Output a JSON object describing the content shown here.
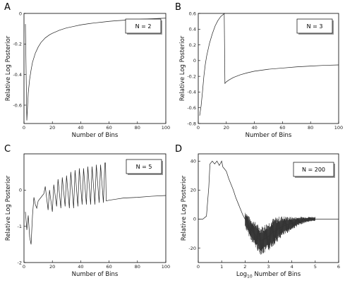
{
  "chart_data": [
    {
      "type": "line",
      "panel": "A",
      "legend": "N = 2",
      "xlabel": "Number of Bins",
      "ylabel": "Relative Log Posterior",
      "xlim": [
        0,
        100
      ],
      "ylim": [
        -0.72,
        0
      ],
      "xticks": [
        "0",
        "20",
        "40",
        "60",
        "80",
        "100"
      ],
      "yticks": [
        "0",
        "-0.2",
        "-0.4",
        "-0.6"
      ],
      "x": [
        1,
        2,
        3,
        4,
        5,
        6,
        8,
        10,
        12,
        15,
        18,
        20,
        25,
        30,
        35,
        40,
        45,
        50,
        55,
        60,
        65,
        70,
        75,
        80,
        85,
        90,
        95,
        100
      ],
      "y": [
        -0.07,
        -0.7,
        -0.52,
        -0.43,
        -0.37,
        -0.32,
        -0.26,
        -0.22,
        -0.19,
        -0.16,
        -0.14,
        -0.13,
        -0.11,
        -0.095,
        -0.085,
        -0.075,
        -0.068,
        -0.062,
        -0.057,
        -0.052,
        -0.048,
        -0.045,
        -0.042,
        -0.039,
        -0.037,
        -0.035,
        -0.033,
        -0.031
      ]
    },
    {
      "type": "line",
      "panel": "B",
      "legend": "N = 3",
      "xlabel": "Number of Bins",
      "ylabel": "Relative Log Posterior",
      "xlim": [
        0,
        100
      ],
      "ylim": [
        -0.8,
        0.6
      ],
      "xticks": [
        "0",
        "20",
        "40",
        "60",
        "80",
        "100"
      ],
      "yticks": [
        "0.6",
        "0.4",
        "0.2",
        "0",
        "-0.2",
        "-0.4",
        "-0.6",
        "-0.8"
      ],
      "x": [
        1,
        2,
        3,
        4,
        5,
        6,
        8,
        10,
        12,
        14,
        16,
        18,
        18.5,
        19,
        20,
        22,
        25,
        30,
        35,
        40,
        50,
        60,
        70,
        80,
        90,
        100
      ],
      "y": [
        -0.7,
        -0.58,
        -0.4,
        -0.2,
        -0.05,
        0.06,
        0.22,
        0.34,
        0.44,
        0.51,
        0.56,
        0.59,
        0.6,
        -0.29,
        -0.27,
        -0.245,
        -0.215,
        -0.18,
        -0.155,
        -0.135,
        -0.11,
        -0.095,
        -0.08,
        -0.07,
        -0.06,
        -0.055
      ]
    },
    {
      "type": "line",
      "panel": "C",
      "legend": "N = 5",
      "xlabel": "Number of Bins",
      "ylabel": "Relative Log Posterior",
      "xlim": [
        0,
        100
      ],
      "ylim": [
        -2,
        1
      ],
      "xticks": [
        "0",
        "20",
        "40",
        "60",
        "80",
        "100"
      ],
      "yticks": [
        "0",
        "-1",
        "-2"
      ],
      "x": [
        1,
        2,
        3,
        4,
        5,
        6,
        7,
        8,
        9,
        10,
        12,
        14,
        15,
        17,
        18,
        20,
        21,
        23,
        24,
        26,
        27,
        29,
        30,
        32,
        33,
        35,
        36,
        38,
        39,
        41,
        42,
        44,
        45,
        47,
        48,
        50,
        51,
        53,
        54,
        56,
        57,
        57.5,
        58,
        60,
        65,
        70,
        80,
        90,
        100
      ],
      "y": [
        -0.6,
        -1.1,
        -0.7,
        -1.3,
        -1.5,
        -0.7,
        -0.2,
        -0.4,
        -0.5,
        -0.3,
        -0.2,
        -0.1,
        0.1,
        -0.55,
        0.0,
        -0.6,
        0.15,
        -0.45,
        0.3,
        -0.5,
        0.35,
        -0.45,
        0.4,
        -0.5,
        0.5,
        -0.5,
        0.55,
        -0.45,
        0.6,
        -0.4,
        0.6,
        -0.4,
        0.65,
        -0.4,
        0.65,
        -0.4,
        0.7,
        -0.35,
        0.7,
        -0.35,
        0.75,
        0.75,
        -0.3,
        -0.28,
        -0.25,
        -0.22,
        -0.2,
        -0.17,
        -0.15
      ]
    },
    {
      "type": "line",
      "panel": "D",
      "legend": "N = 200",
      "xlabel": "Log10 Number of Bins",
      "xlabel_base": "Log",
      "xlabel_sub": "10",
      "xlabel_rest": " Number of Bins",
      "ylabel": "Relative Log Posterior",
      "xlim": [
        0,
        6
      ],
      "ylim": [
        -30,
        45
      ],
      "xticks": [
        "0",
        "1",
        "2",
        "3",
        "4",
        "5",
        "6"
      ],
      "yticks": [
        "40",
        "20",
        "0",
        "-20"
      ],
      "x": [
        0,
        0.2,
        0.35,
        0.45,
        0.5,
        0.6,
        0.7,
        0.8,
        0.9,
        1.0,
        1.05,
        1.1,
        1.2,
        1.3,
        1.4,
        1.5,
        1.6,
        1.7,
        1.8,
        1.9,
        2.0,
        2.1,
        2.2,
        2.3,
        2.4,
        2.5,
        2.6,
        2.7,
        2.8,
        2.9,
        3.0,
        3.2,
        3.4,
        3.6,
        3.8,
        4.0,
        4.2,
        4.4,
        4.6,
        4.8,
        5.0,
        5.1,
        5.5,
        6.0
      ],
      "y": [
        0,
        0,
        2,
        22,
        38,
        40,
        38,
        40,
        37,
        40,
        36,
        35,
        33,
        28,
        24,
        20,
        15,
        11,
        7,
        3,
        0,
        -3,
        -6,
        -8,
        -10,
        -12,
        -14,
        -15,
        -14,
        -13,
        -12,
        -9,
        -7,
        -5,
        -4,
        -3,
        -2,
        -1,
        -0.5,
        0,
        0,
        0,
        0,
        0
      ],
      "noise_band": {
        "x_start": 2.0,
        "x_end": 5.0
      }
    }
  ]
}
